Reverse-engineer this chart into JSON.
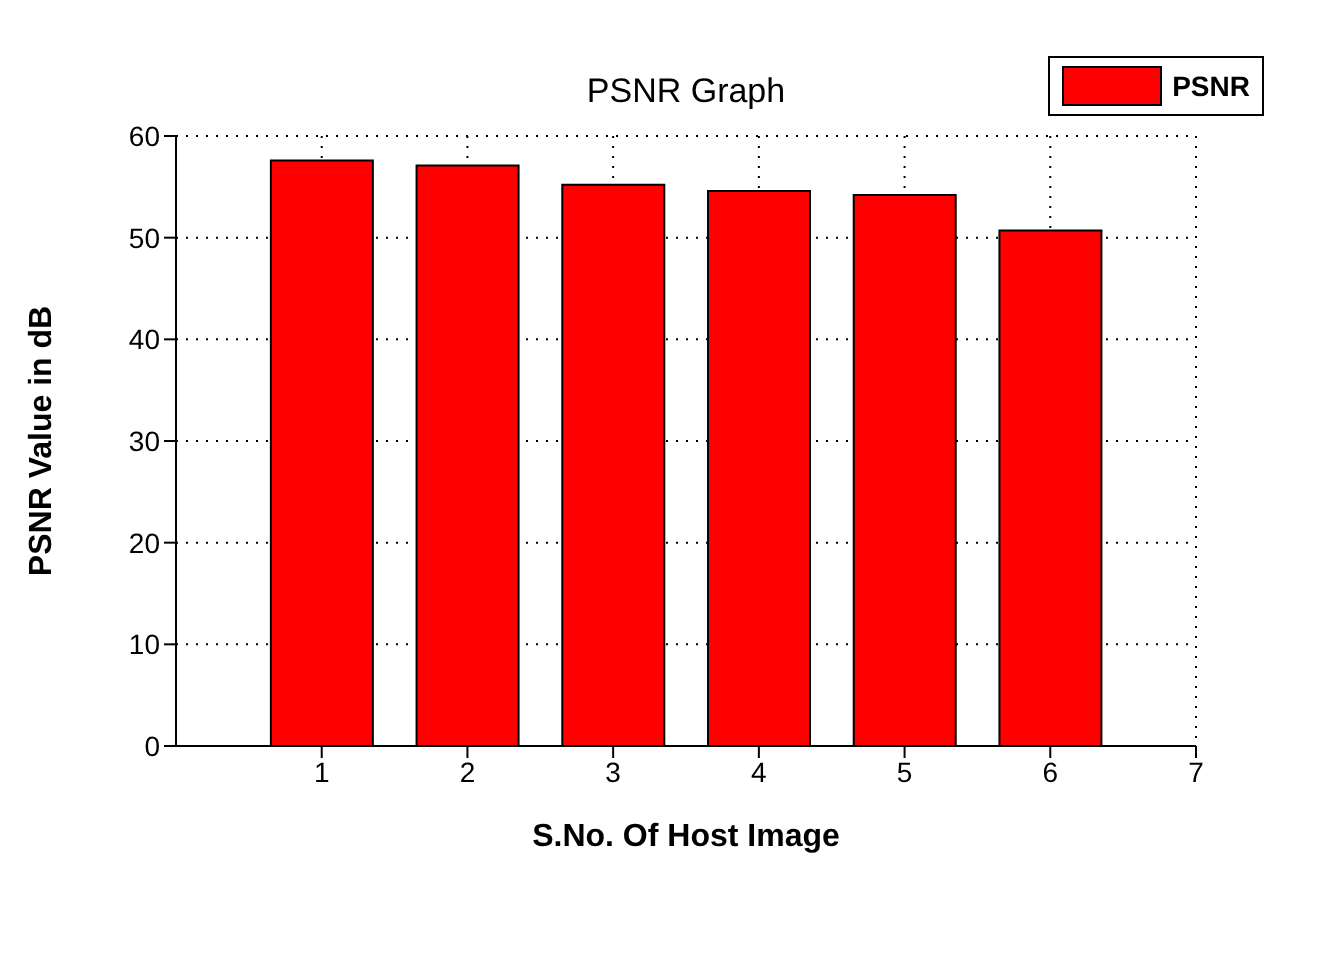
{
  "chart_data": {
    "type": "bar",
    "title": "PSNR Graph",
    "xlabel": "S.No. Of Host Image",
    "ylabel": "PSNR Value in dB",
    "x": [
      1,
      2,
      3,
      4,
      5,
      6
    ],
    "series": [
      {
        "name": "PSNR",
        "color": "#ff0000",
        "values": [
          57.6,
          57.1,
          55.2,
          54.6,
          54.2,
          50.7
        ]
      }
    ],
    "xlim": [
      0,
      7
    ],
    "xticks": [
      1,
      2,
      3,
      4,
      5,
      6,
      7
    ],
    "ylim": [
      0,
      60
    ],
    "yticks": [
      0,
      10,
      20,
      30,
      40,
      50,
      60
    ],
    "grid": true,
    "legend": "top right"
  }
}
